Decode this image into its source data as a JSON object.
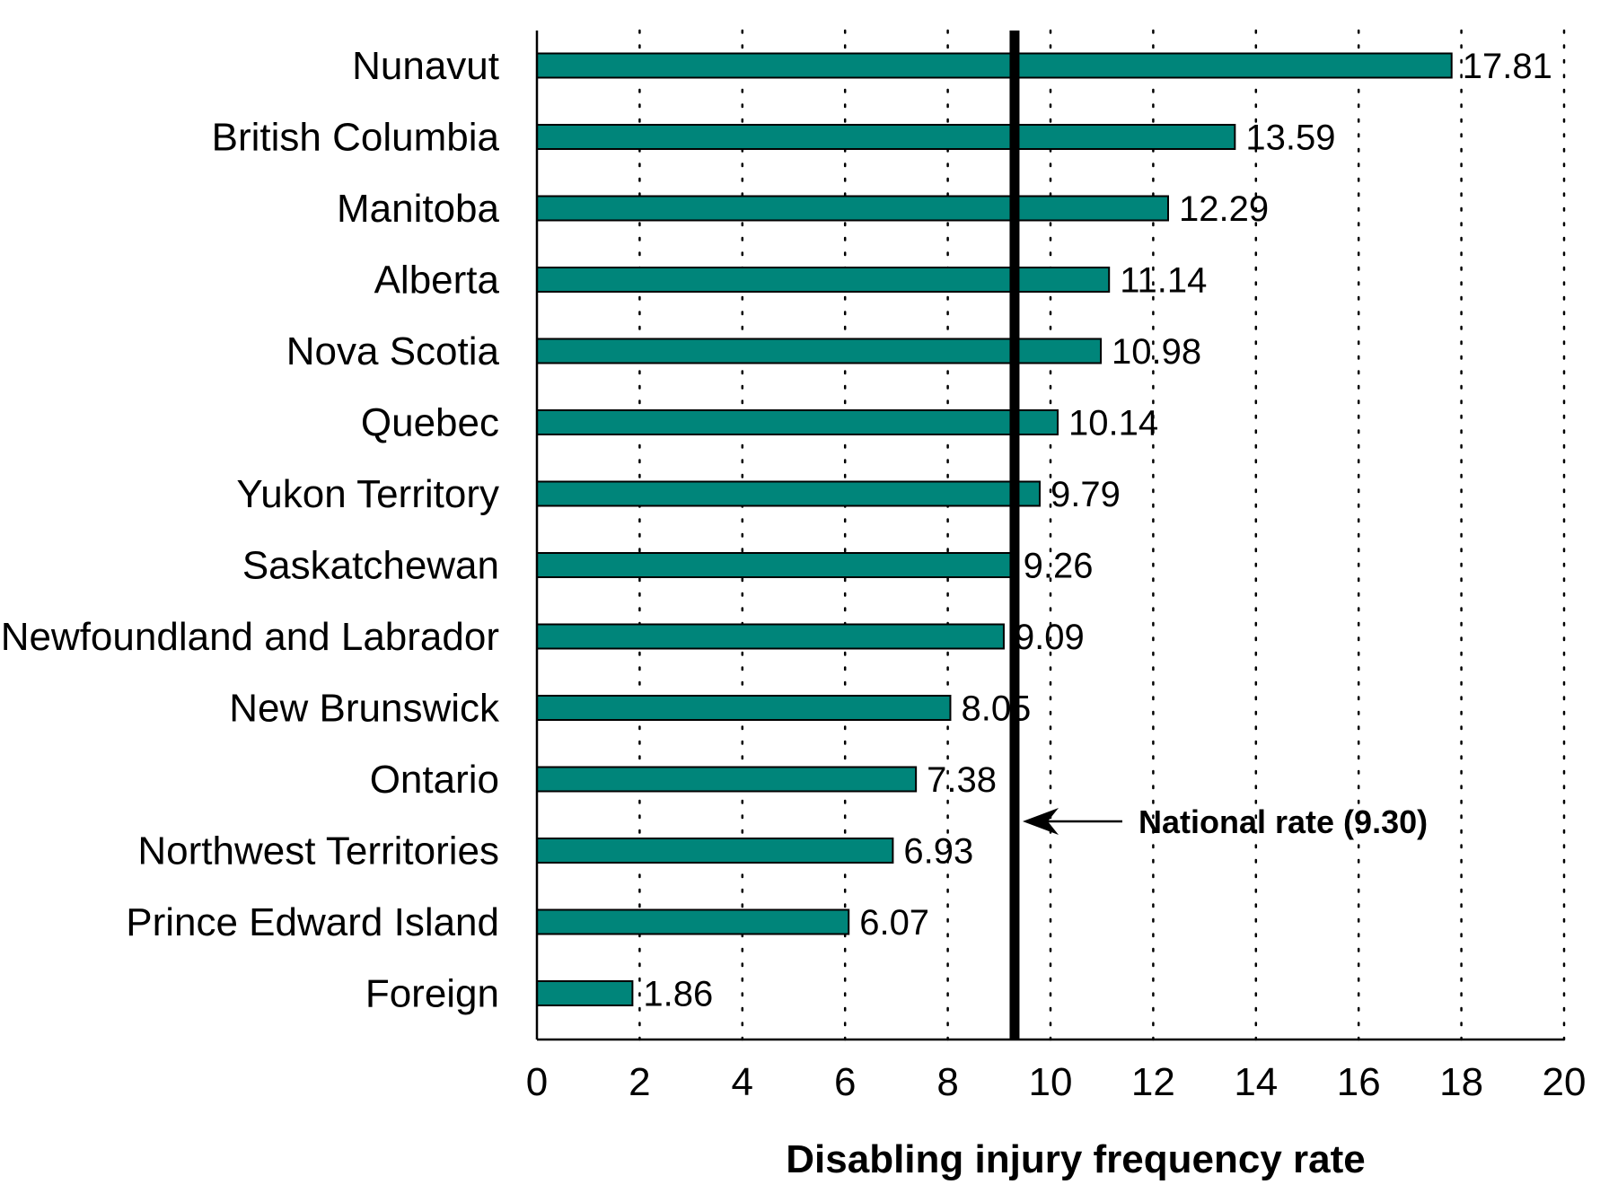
{
  "chart_data": {
    "type": "bar",
    "orientation": "horizontal",
    "title": "",
    "xlabel": "Disabling injury frequency rate",
    "ylabel": "",
    "xlim": [
      0,
      20
    ],
    "xticks": [
      "0",
      "2",
      "4",
      "6",
      "8",
      "10",
      "12",
      "14",
      "16",
      "18",
      "20"
    ],
    "grid": "vertical dotted",
    "bar_color": "#00857a",
    "categories": [
      "Nunavut",
      "British Columbia",
      "Manitoba",
      "Alberta",
      "Nova Scotia",
      "Quebec",
      "Yukon Territory",
      "Saskatchewan",
      "Newfoundland and Labrador",
      "New Brunswick",
      "Ontario",
      "Northwest Territories",
      "Prince Edward Island",
      "Foreign"
    ],
    "values": [
      17.81,
      13.59,
      12.29,
      11.14,
      10.98,
      10.14,
      9.79,
      9.26,
      9.09,
      8.05,
      7.38,
      6.93,
      6.07,
      1.86
    ],
    "value_labels": [
      "17.81",
      "13.59",
      "12.29",
      "11.14",
      "10.98",
      "10.14",
      "9.79",
      "9.26",
      "9.09",
      "8.05",
      "7.38",
      "6.93",
      "6.07",
      "1.86"
    ],
    "reference_line": {
      "value": 9.3,
      "label": "National rate (9.30)"
    }
  }
}
